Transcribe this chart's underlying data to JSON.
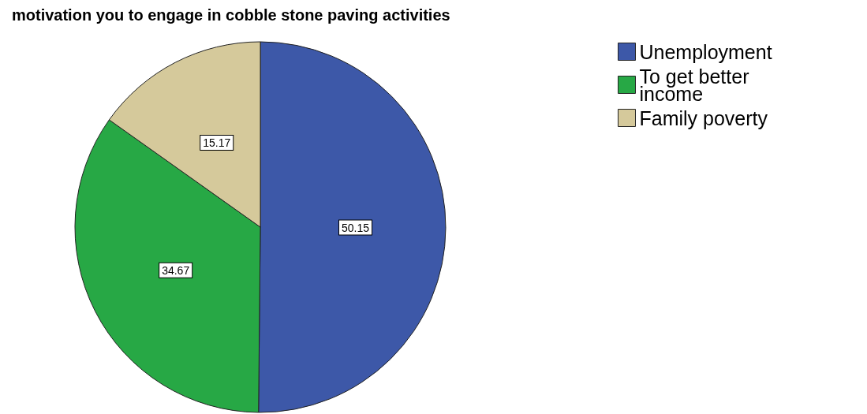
{
  "chart_data": {
    "type": "pie",
    "title": "motivation you to engage in cobble stone paving activities",
    "categories": [
      "Unemployment",
      "To get better income",
      "Family poverty"
    ],
    "values": [
      50.15,
      34.67,
      15.17
    ],
    "colors": [
      "#3d58a8",
      "#27a845",
      "#d5c99b"
    ],
    "data_labels": true,
    "legend": "top right"
  }
}
